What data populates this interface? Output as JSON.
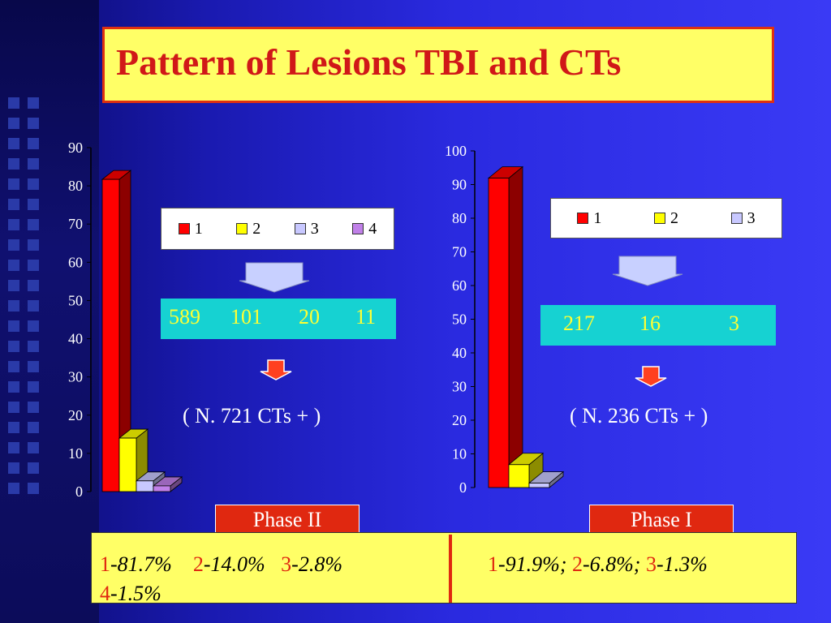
{
  "title": "Pattern of Lesions TBI  and CTs",
  "chart_data": [
    {
      "type": "bar",
      "categories": [
        "1",
        "2",
        "3",
        "4"
      ],
      "values": [
        81.7,
        14.0,
        2.8,
        1.5
      ],
      "ylim": [
        0,
        90
      ],
      "yticks": [
        "0",
        "10",
        "20",
        "30",
        "40",
        "50",
        "60",
        "70",
        "80",
        "90"
      ],
      "legend": [
        "1",
        "2",
        "3",
        "4"
      ],
      "colors": [
        "#ff0000",
        "#ffff00",
        "#c8c8ff",
        "#c080e8"
      ]
    },
    {
      "type": "bar",
      "categories": [
        "1",
        "2",
        "3"
      ],
      "values": [
        91.9,
        6.8,
        1.3
      ],
      "ylim": [
        0,
        100
      ],
      "yticks": [
        "0",
        "10",
        "20",
        "30",
        "40",
        "50",
        "60",
        "70",
        "80",
        "90",
        "100"
      ],
      "legend": [
        "1",
        "2",
        "3"
      ],
      "colors": [
        "#ff0000",
        "#ffff00",
        "#c8c8ff"
      ]
    }
  ],
  "left_panel": {
    "counts": [
      "589",
      "101",
      "20",
      "11"
    ],
    "total_label": "( N. 721 CTs + )",
    "phase": "Phase II"
  },
  "right_panel": {
    "counts": [
      "217",
      "16",
      "3"
    ],
    "total_label": "( N. 236 CTs + )",
    "phase": "Phase I"
  },
  "bottom": {
    "left": {
      "items": [
        {
          "n": "1",
          "t": "-81.7%"
        },
        {
          "n": "2",
          "t": "-14.0%"
        },
        {
          "n": "3",
          "t": "-2.8%"
        },
        {
          "n": "4",
          "t": "-1.5%"
        }
      ]
    },
    "right": {
      "items": [
        {
          "n": "1",
          "t": "-91.9%;"
        },
        {
          "n": "2",
          "t": "-6.8%;"
        },
        {
          "n": "3",
          "t": "-1.3%"
        }
      ]
    }
  }
}
